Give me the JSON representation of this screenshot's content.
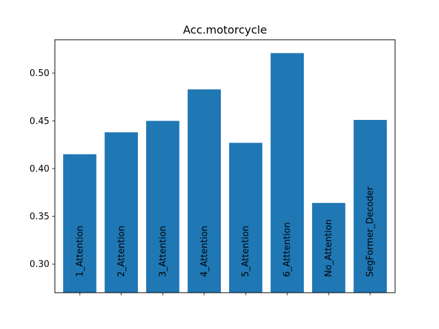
{
  "chart_data": {
    "type": "bar",
    "title": "Acc.motorcycle",
    "xlabel": "",
    "ylabel": "",
    "categories": [
      "1_Attention",
      "2_Attention",
      "3_Attention",
      "4_Attention",
      "5_Attention",
      "6_Atttention",
      "No_Attention",
      "SegFormer_Decoder"
    ],
    "values": [
      0.415,
      0.438,
      0.45,
      0.483,
      0.427,
      0.521,
      0.364,
      0.451
    ],
    "ylim": [
      0.27,
      0.535
    ],
    "yticks": [
      0.3,
      0.35,
      0.4,
      0.45,
      0.5
    ],
    "ytick_labels": [
      "0.30",
      "0.35",
      "0.40",
      "0.45",
      "0.50"
    ],
    "bar_color": "#1f77b4",
    "grid": false,
    "category_labels_inside_bars": true
  }
}
